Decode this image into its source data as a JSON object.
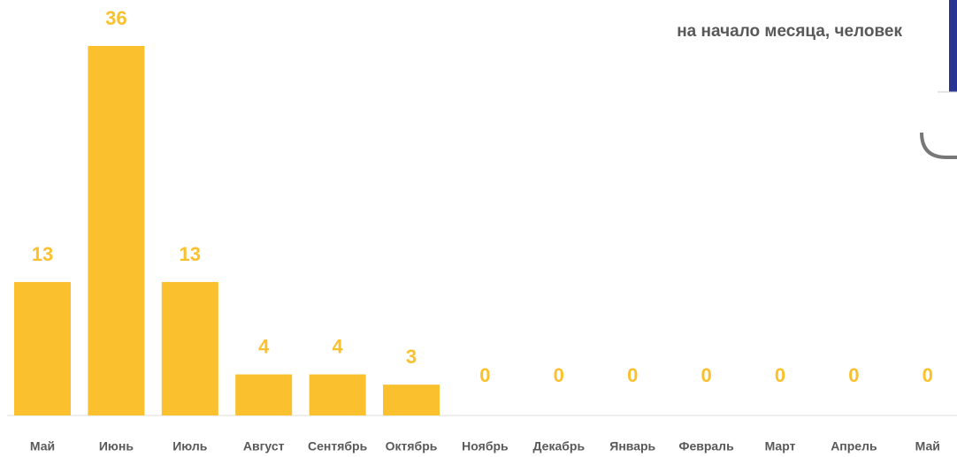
{
  "chart_data": {
    "type": "bar",
    "subtitle": "на начало месяца, человек",
    "categories": [
      "Май",
      "Июнь",
      "Июль",
      "Август",
      "Сентябрь",
      "Октябрь",
      "Ноябрь",
      "Декабрь",
      "Январь",
      "Февраль",
      "Март",
      "Апрель",
      "Май"
    ],
    "values": [
      13,
      36,
      13,
      4,
      4,
      3,
      0,
      0,
      0,
      0,
      0,
      0,
      0
    ],
    "color": "#fbc02d"
  }
}
